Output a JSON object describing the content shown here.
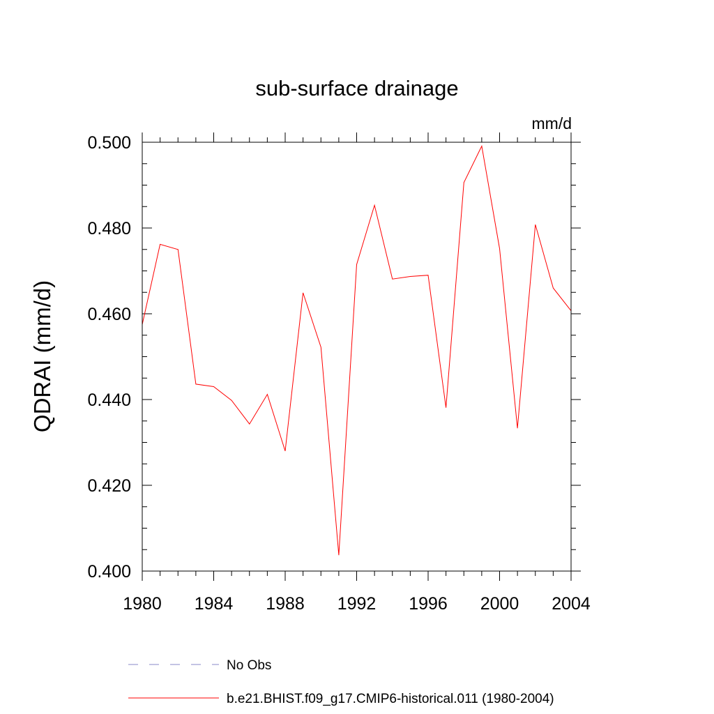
{
  "chart_data": {
    "type": "line",
    "title": "sub-surface drainage",
    "units_label": "mm/d",
    "ylabel": "QDRAI  (mm/d)",
    "xlabel": "",
    "xlim": [
      1980,
      2004
    ],
    "ylim": [
      0.4,
      0.5
    ],
    "xticks": [
      "1980",
      "1984",
      "1988",
      "1992",
      "1996",
      "2000",
      "2004"
    ],
    "yticks": [
      "0.400",
      "0.420",
      "0.440",
      "0.460",
      "0.480",
      "0.500"
    ],
    "grid": false,
    "legend_position": "bottom",
    "x": [
      1980,
      1981,
      1982,
      1983,
      1984,
      1985,
      1986,
      1987,
      1988,
      1989,
      1990,
      1991,
      1992,
      1993,
      1994,
      1995,
      1996,
      1997,
      1998,
      1999,
      2000,
      2001,
      2002,
      2003,
      2004
    ],
    "series": [
      {
        "name": "b.e21.BHIST.f09_g17.CMIP6-historical.011 (1980-2004)",
        "color": "#ff0000",
        "style": "solid",
        "values": [
          0.4575,
          0.4762,
          0.475,
          0.4436,
          0.443,
          0.4398,
          0.4343,
          0.4412,
          0.428,
          0.4649,
          0.4522,
          0.4037,
          0.4715,
          0.4853,
          0.4681,
          0.4687,
          0.469,
          0.4381,
          0.4906,
          0.4991,
          0.4752,
          0.4333,
          0.4808,
          0.466,
          0.4607
        ]
      }
    ],
    "legend": [
      {
        "label": "No Obs",
        "color": "#8a8ac8",
        "style": "dashed"
      },
      {
        "label": "b.e21.BHIST.f09_g17.CMIP6-historical.011 (1980-2004)",
        "color": "#ff0000",
        "style": "solid"
      }
    ]
  }
}
